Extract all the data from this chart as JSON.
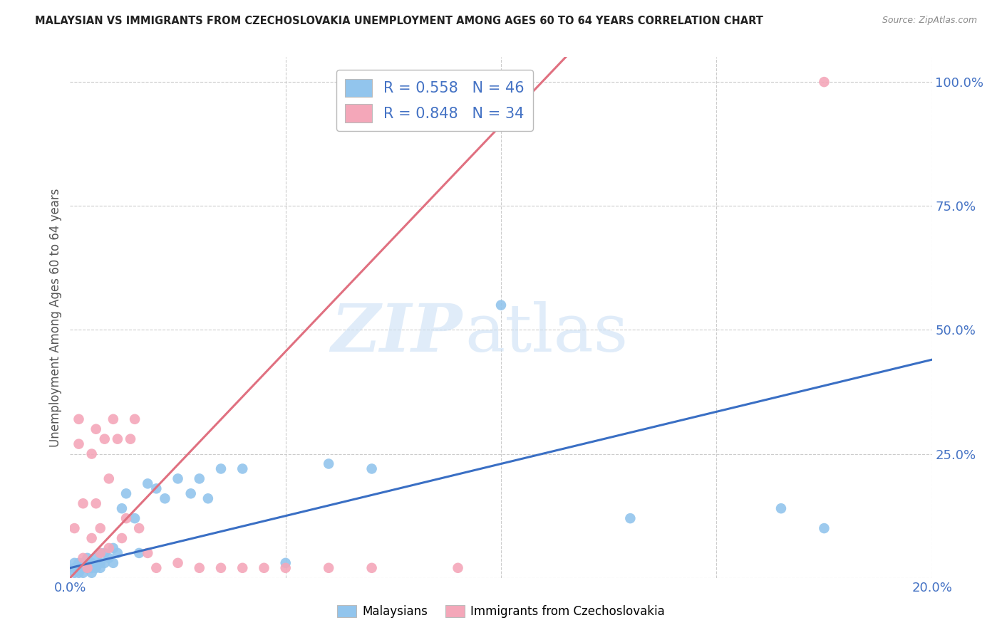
{
  "title": "MALAYSIAN VS IMMIGRANTS FROM CZECHOSLOVAKIA UNEMPLOYMENT AMONG AGES 60 TO 64 YEARS CORRELATION CHART",
  "source": "Source: ZipAtlas.com",
  "ylabel": "Unemployment Among Ages 60 to 64 years",
  "xlim": [
    0.0,
    0.2
  ],
  "ylim": [
    0.0,
    1.05
  ],
  "xticks": [
    0.0,
    0.05,
    0.1,
    0.15,
    0.2
  ],
  "xtick_labels": [
    "0.0%",
    "",
    "",
    "",
    "20.0%"
  ],
  "yticks_right": [
    0.0,
    0.25,
    0.5,
    0.75,
    1.0
  ],
  "ytick_labels_right": [
    "",
    "25.0%",
    "50.0%",
    "75.0%",
    "100.0%"
  ],
  "legend_blue_R": "R = 0.558",
  "legend_blue_N": "N = 46",
  "legend_pink_R": "R = 0.848",
  "legend_pink_N": "N = 34",
  "blue_color": "#92C5ED",
  "pink_color": "#F4A7B9",
  "blue_line_color": "#3A6FC4",
  "pink_line_color": "#E07080",
  "legend_label_blue": "Malaysians",
  "legend_label_pink": "Immigrants from Czechoslovakia",
  "background_color": "#ffffff",
  "grid_color": "#cccccc",
  "blue_line_x0": 0.0,
  "blue_line_y0": 0.02,
  "blue_line_x1": 0.2,
  "blue_line_y1": 0.44,
  "pink_line_x0": 0.0,
  "pink_line_y0": 0.0,
  "pink_line_x1": 0.115,
  "pink_line_y1": 1.05,
  "blue_scatter_x": [
    0.001,
    0.001,
    0.001,
    0.002,
    0.002,
    0.002,
    0.003,
    0.003,
    0.003,
    0.004,
    0.004,
    0.004,
    0.005,
    0.005,
    0.005,
    0.006,
    0.006,
    0.007,
    0.007,
    0.007,
    0.008,
    0.008,
    0.009,
    0.01,
    0.01,
    0.011,
    0.012,
    0.013,
    0.015,
    0.016,
    0.018,
    0.02,
    0.022,
    0.025,
    0.028,
    0.03,
    0.032,
    0.035,
    0.04,
    0.05,
    0.06,
    0.07,
    0.1,
    0.13,
    0.165,
    0.175
  ],
  "blue_scatter_y": [
    0.01,
    0.02,
    0.03,
    0.01,
    0.02,
    0.03,
    0.01,
    0.02,
    0.03,
    0.02,
    0.03,
    0.04,
    0.01,
    0.02,
    0.03,
    0.02,
    0.04,
    0.02,
    0.03,
    0.05,
    0.03,
    0.05,
    0.04,
    0.03,
    0.06,
    0.05,
    0.14,
    0.17,
    0.12,
    0.05,
    0.19,
    0.18,
    0.16,
    0.2,
    0.17,
    0.2,
    0.16,
    0.22,
    0.22,
    0.03,
    0.23,
    0.22,
    0.55,
    0.12,
    0.14,
    0.1
  ],
  "pink_scatter_x": [
    0.001,
    0.002,
    0.002,
    0.003,
    0.003,
    0.004,
    0.005,
    0.005,
    0.006,
    0.006,
    0.007,
    0.007,
    0.008,
    0.009,
    0.009,
    0.01,
    0.011,
    0.012,
    0.013,
    0.014,
    0.015,
    0.016,
    0.018,
    0.02,
    0.025,
    0.03,
    0.035,
    0.04,
    0.045,
    0.05,
    0.06,
    0.07,
    0.09,
    0.175
  ],
  "pink_scatter_y": [
    0.1,
    0.32,
    0.27,
    0.15,
    0.04,
    0.02,
    0.25,
    0.08,
    0.3,
    0.15,
    0.1,
    0.05,
    0.28,
    0.2,
    0.06,
    0.32,
    0.28,
    0.08,
    0.12,
    0.28,
    0.32,
    0.1,
    0.05,
    0.02,
    0.03,
    0.02,
    0.02,
    0.02,
    0.02,
    0.02,
    0.02,
    0.02,
    0.02,
    1.0
  ]
}
